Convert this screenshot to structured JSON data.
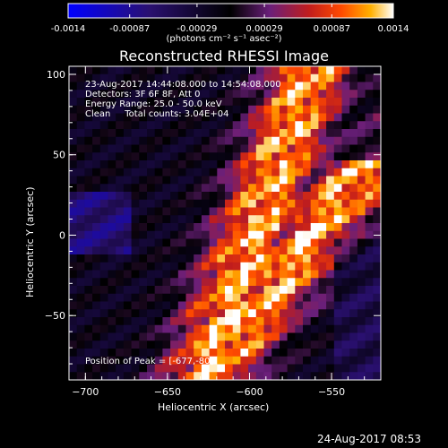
{
  "colorbar": {
    "tick_labels": [
      "-0.0014",
      "-0.00087",
      "-0.00029",
      "0.00029",
      "0.00087",
      "0.0014"
    ],
    "tick_values": [
      -0.0014,
      -0.00087,
      -0.00029,
      0.00029,
      0.00087,
      0.0014
    ],
    "range": [
      -0.0014,
      0.0014
    ],
    "units": "(photons cm⁻² s⁻¹ asec⁻²)",
    "colors": [
      "#0000ff",
      "#2a1070",
      "#000000",
      "#6a1f7a",
      "#c01d1d",
      "#ff4a00",
      "#ffb000",
      "#ffffff"
    ]
  },
  "title": "Reconstructed RHESSI Image",
  "info": {
    "time": "23-Aug-2017 14:44:08.000 to 14:54:08.000",
    "detectors": "Detectors: 3F 6F 8F, Att 0",
    "energy": "Energy Range: 25.0 - 50.0 keV",
    "clean": "Clean     Total counts: 3.04E+04"
  },
  "peak": "Position of Peak = [-677,-80]",
  "chart_data": {
    "type": "heatmap",
    "title": "Reconstructed RHESSI Image",
    "xlabel": "Heliocentric X (arcsec)",
    "ylabel": "Heliocentric Y (arcsec)",
    "xlim": [
      -710,
      -520
    ],
    "ylim": [
      -90,
      105
    ],
    "xticks": [
      -700,
      -650,
      -600,
      -550
    ],
    "xtick_labels": [
      "−700",
      "−650",
      "−600",
      "−550"
    ],
    "yticks": [
      -50,
      0,
      50,
      100
    ],
    "ytick_labels": [
      "−50",
      "0",
      "50",
      "100"
    ],
    "peak_position": [
      -677,
      -80
    ],
    "grid": false
  },
  "timestamp": "24-Aug-2017 08:53"
}
